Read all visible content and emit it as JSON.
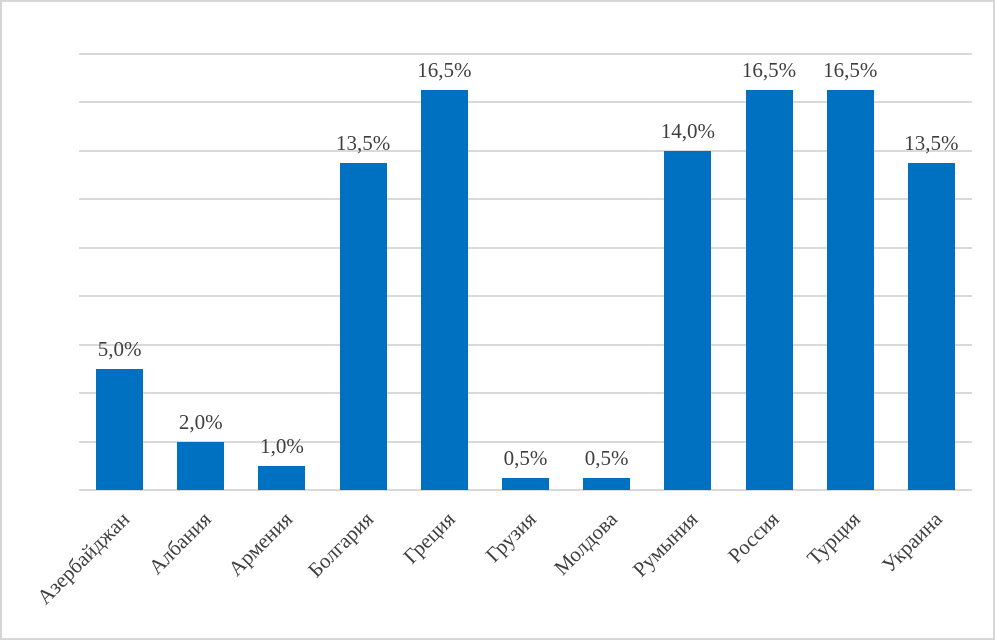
{
  "chart_data": {
    "type": "bar",
    "title": "",
    "xlabel": "",
    "ylabel": "",
    "categories": [
      "Азербайджан",
      "Албания",
      "Армения",
      "Болгария",
      "Греция",
      "Грузия",
      "Молдова",
      "Румыния",
      "Россия",
      "Турция",
      "Украина"
    ],
    "values": [
      5.0,
      2.0,
      1.0,
      13.5,
      16.5,
      0.5,
      0.5,
      14.0,
      16.5,
      16.5,
      13.5
    ],
    "data_labels": [
      "5,0%",
      "2,0%",
      "1,0%",
      "13,5%",
      "16,5%",
      "0,5%",
      "0,5%",
      "14,0%",
      "16,5%",
      "16,5%",
      "13,5%"
    ],
    "ylim": [
      0,
      18
    ],
    "gridline_step": 2,
    "grid": true,
    "legend": false,
    "y_axis_tick_labels_visible": false,
    "x_label_rotation_deg": 45,
    "colors": {
      "bar": "#0070C0",
      "gridline": "#D9D9D9",
      "axis_line": "#D9D9D9",
      "text": "#3F3F3F",
      "background": "#FFFFFF",
      "frame_border": "#D6D6D6"
    }
  }
}
